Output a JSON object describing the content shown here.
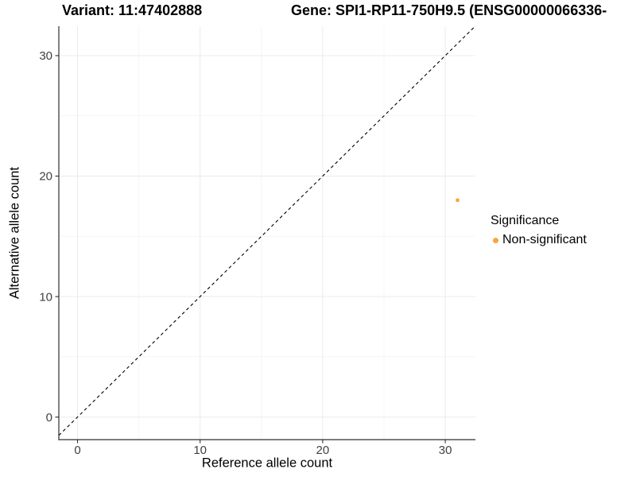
{
  "header": {
    "variant_title": "Variant: 11:47402888",
    "gene_title": "Gene: SPI1-RP11-750H9.5 (ENSG00000066336-"
  },
  "axes": {
    "x_title": "Reference allele count",
    "y_title": "Alternative allele count"
  },
  "legend": {
    "title": "Significance",
    "items": [
      {
        "label": "Non-significant",
        "color": "#F9A43F",
        "marker": "circle-icon"
      }
    ]
  },
  "chart_data": {
    "type": "scatter",
    "title": "Variant: 11:47402888 / Gene: SPI1-RP11-750H9.5 (ENSG00000066336-",
    "xlabel": "Reference allele count",
    "ylabel": "Alternative allele count",
    "xlim": [
      -1.55,
      32.45
    ],
    "ylim": [
      -1.9,
      32.45
    ],
    "x_ticks": [
      0,
      10,
      20,
      30
    ],
    "y_ticks": [
      0,
      10,
      20,
      30
    ],
    "x_minor_ticks": [
      5,
      15,
      25
    ],
    "y_minor_ticks": [
      5,
      15,
      25
    ],
    "grid": "major+minor",
    "legend_position": "right",
    "series": [
      {
        "name": "Non-significant",
        "color": "#F9A43F",
        "points": [
          {
            "x": 31,
            "y": 18
          }
        ]
      }
    ],
    "reference_line": {
      "type": "identity y=x",
      "style": "dashed",
      "color": "#000000"
    }
  },
  "colors": {
    "accent_orange": "#F9A43F",
    "axis_line": "#2F2F2F",
    "tick_label": "#404040",
    "grid_major": "#EBEBEB",
    "grid_minor": "#F4F4F4",
    "title_text": "#000000"
  }
}
